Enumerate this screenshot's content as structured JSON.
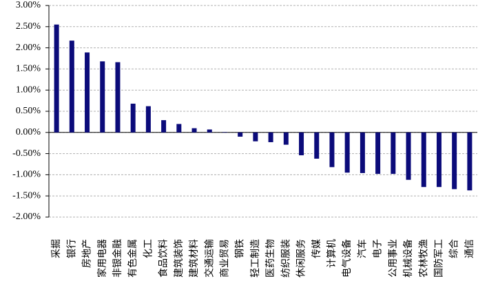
{
  "chart_data": {
    "type": "bar",
    "categories": [
      "采掘",
      "银行",
      "房地产",
      "家用电器",
      "非银金融",
      "有色金属",
      "化工",
      "食品饮料",
      "建筑装饰",
      "建筑材料",
      "交通运输",
      "商业贸易",
      "钢铁",
      "轻工制造",
      "医药生物",
      "纺织服装",
      "休闲服务",
      "传媒",
      "计算机",
      "电气设备",
      "汽车",
      "电子",
      "公用事业",
      "机械设备",
      "农林牧渔",
      "国防军工",
      "综合",
      "通信"
    ],
    "values": [
      2.55,
      2.17,
      1.89,
      1.68,
      1.66,
      0.68,
      0.62,
      0.29,
      0.2,
      0.1,
      0.07,
      0.01,
      -0.1,
      -0.21,
      -0.23,
      -0.29,
      -0.54,
      -0.62,
      -0.82,
      -0.95,
      -0.96,
      -0.98,
      -0.98,
      -1.12,
      -1.29,
      -1.29,
      -1.34,
      -1.37
    ],
    "color": "#0b0b7a",
    "ylim": [
      -2,
      3
    ],
    "yticks": [
      {
        "value": -2,
        "label": "-2.00%"
      },
      {
        "value": -1.5,
        "label": "-1.50%"
      },
      {
        "value": -1,
        "label": "-1.00%"
      },
      {
        "value": -0.5,
        "label": "-0.50%"
      },
      {
        "value": 0,
        "label": "0.00%"
      },
      {
        "value": 0.5,
        "label": "0.50%"
      },
      {
        "value": 1,
        "label": "1.00%"
      },
      {
        "value": 1.5,
        "label": "1.50%"
      },
      {
        "value": 2,
        "label": "2.00%"
      },
      {
        "value": 2.5,
        "label": "2.50%"
      },
      {
        "value": 3,
        "label": "3.00%"
      }
    ],
    "grid": true
  }
}
